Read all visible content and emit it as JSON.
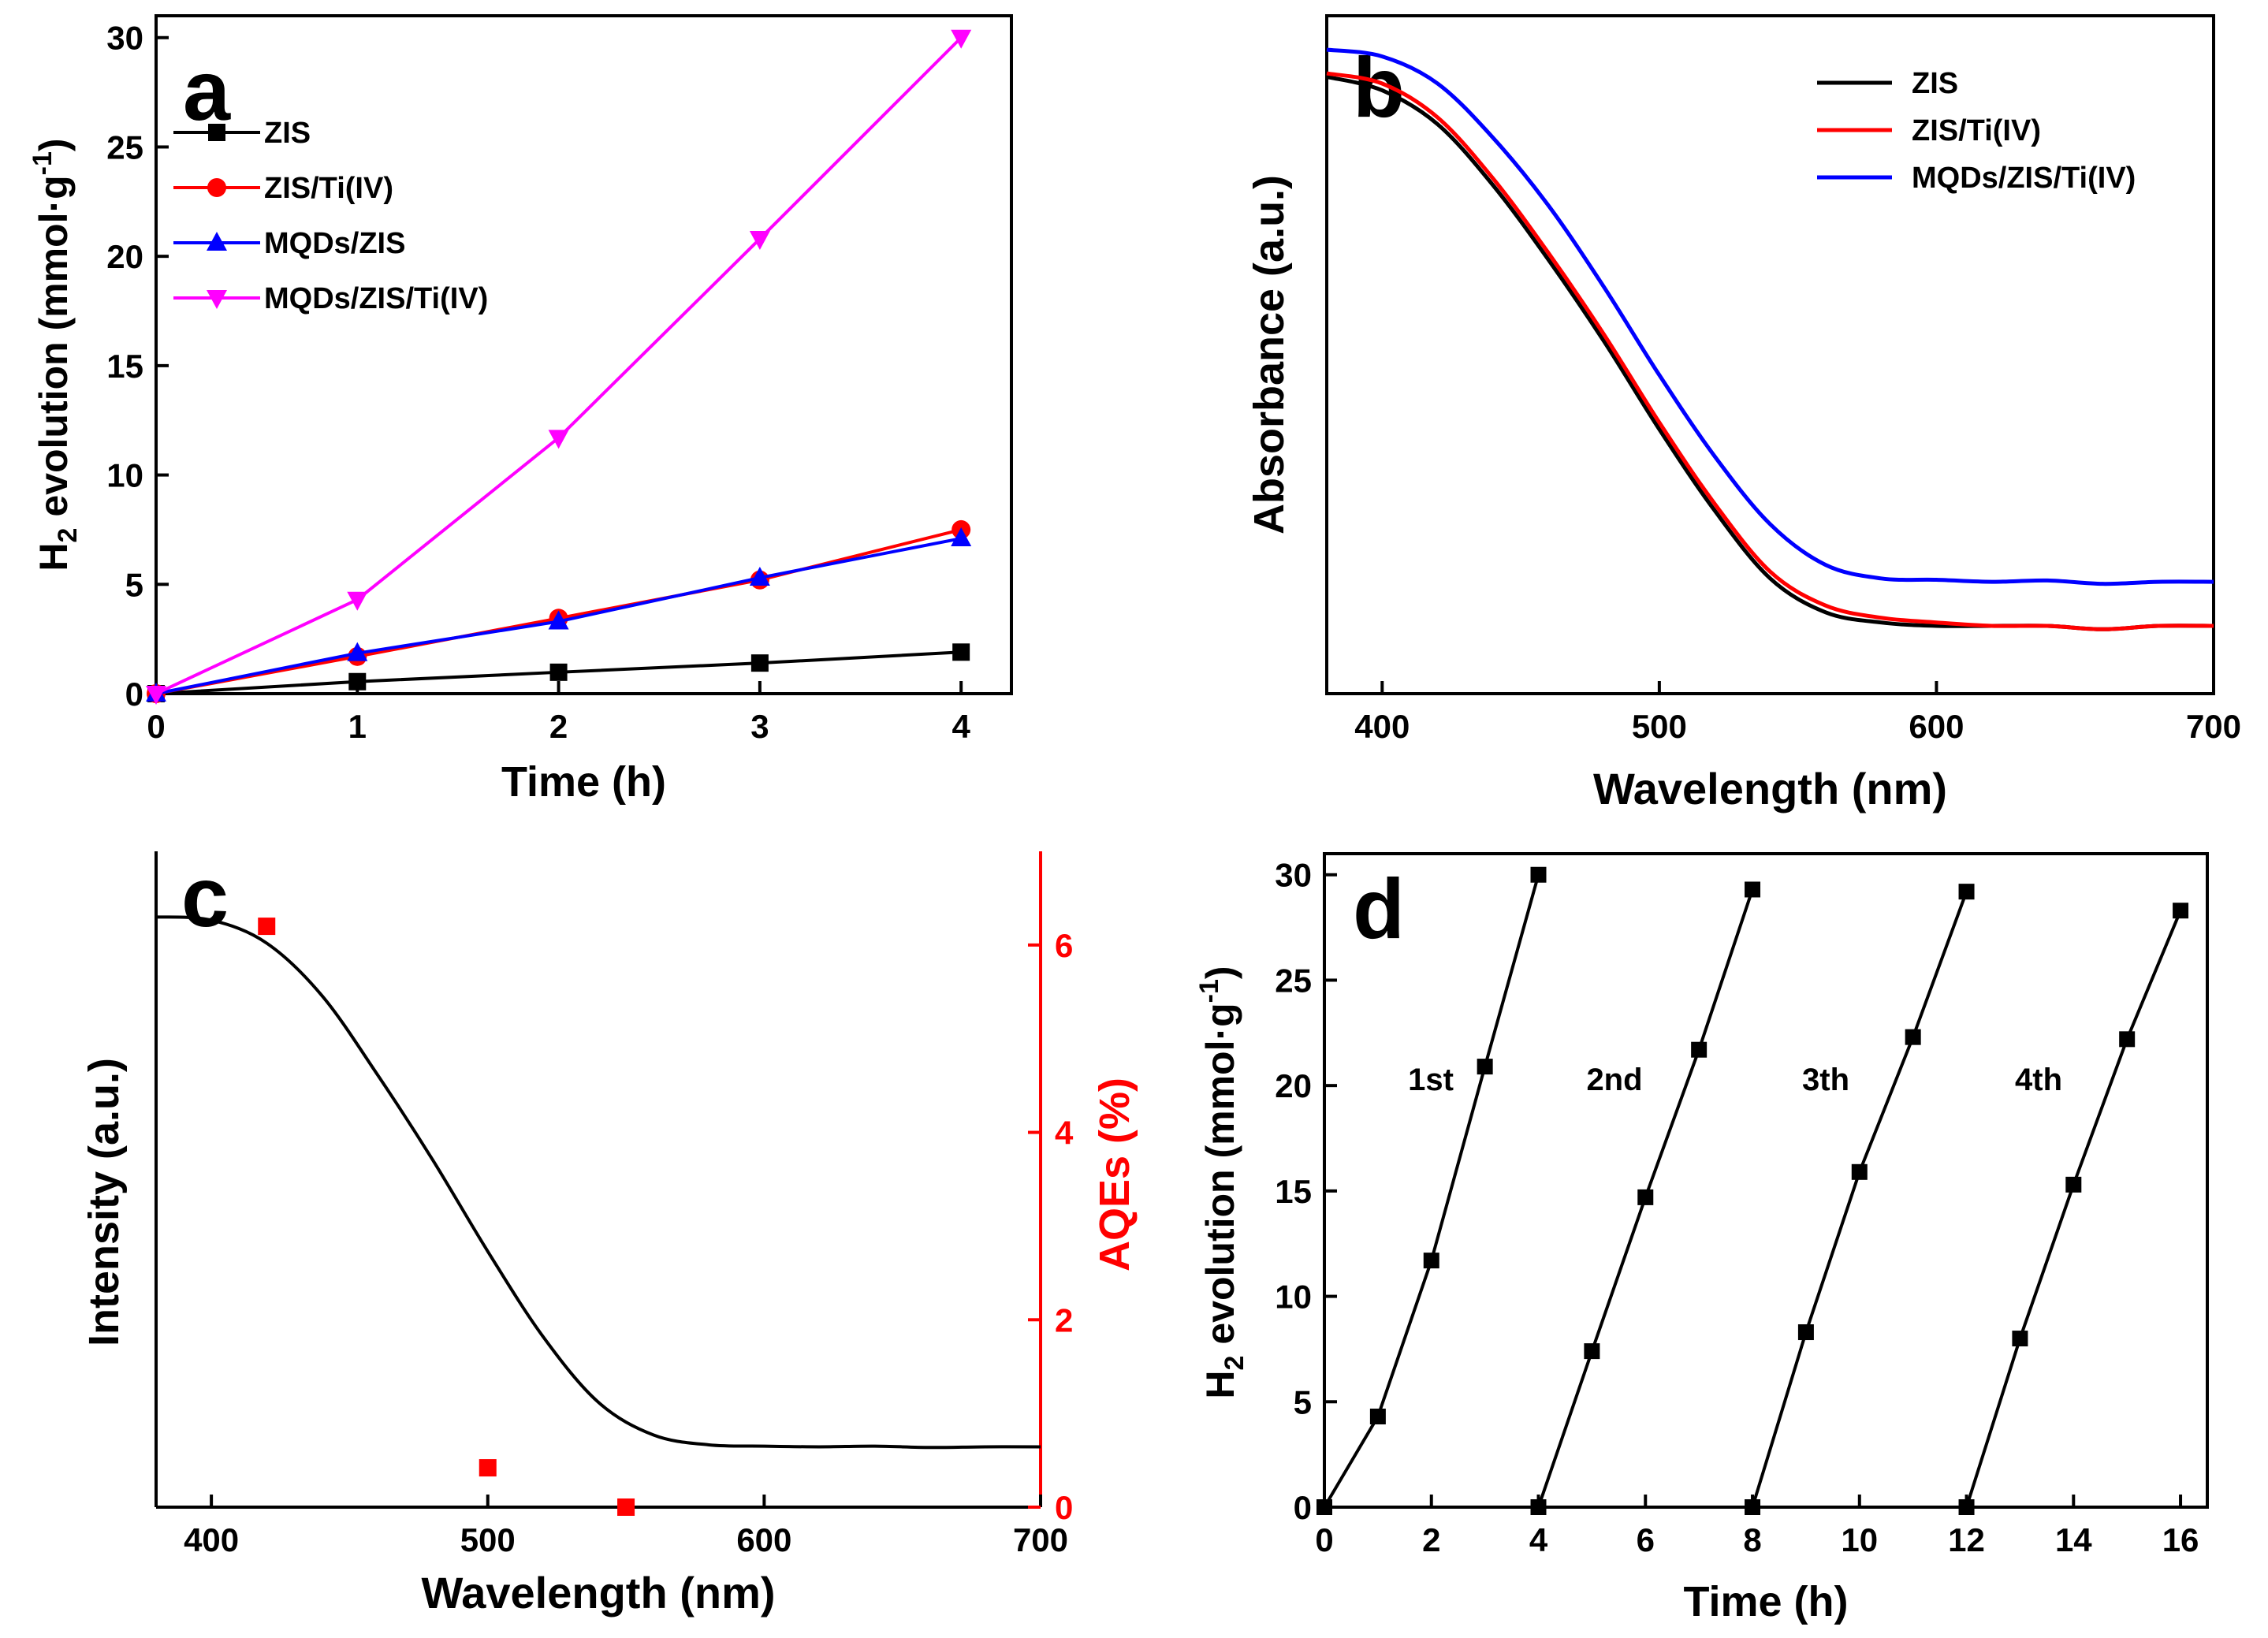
{
  "chart_data": [
    {
      "id": "a",
      "type": "line",
      "panel_label": "a",
      "xlabel": "Time (h)",
      "ylabel": {
        "main": "H",
        "sub": "2",
        "rest": " evolution (mmol·g",
        "sup": "-1",
        "close": ")"
      },
      "xlim": [
        0,
        4.25
      ],
      "ylim": [
        0,
        31
      ],
      "xticks": [
        0,
        1,
        2,
        3,
        4
      ],
      "yticks": [
        0,
        5,
        10,
        15,
        20,
        25,
        30
      ],
      "x": [
        0,
        1,
        2,
        3,
        4
      ],
      "legend_position": "top-left",
      "series": [
        {
          "name": "ZIS",
          "color": "#000000",
          "marker": "square",
          "values": [
            0,
            0.55,
            0.98,
            1.4,
            1.9
          ]
        },
        {
          "name": "ZIS/Ti(IV)",
          "color": "#ff0000",
          "marker": "circle",
          "values": [
            0,
            1.7,
            3.45,
            5.2,
            7.5
          ]
        },
        {
          "name": "MQDs/ZIS",
          "color": "#0000ff",
          "marker": "triangle-up",
          "values": [
            0,
            1.85,
            3.3,
            5.3,
            7.1
          ]
        },
        {
          "name": "MQDs/ZIS/Ti(IV)",
          "color": "#ff00ff",
          "marker": "triangle-down",
          "values": [
            0,
            4.3,
            11.7,
            20.8,
            30.0
          ]
        }
      ]
    },
    {
      "id": "b",
      "type": "line",
      "panel_label": "b",
      "xlabel": "Wavelength (nm)",
      "ylabel": "Absorbance (a.u.)",
      "xlim": [
        380,
        700
      ],
      "ylim": [
        0,
        1
      ],
      "xticks": [
        400,
        500,
        600,
        700
      ],
      "yticks": [],
      "legend_position": "top-right",
      "series": [
        {
          "name": "ZIS",
          "color": "#000000",
          "x": [
            380,
            400,
            420,
            440,
            460,
            480,
            500,
            520,
            540,
            560,
            580,
            600,
            620,
            640,
            660,
            680,
            700
          ],
          "values": [
            0.91,
            0.89,
            0.84,
            0.75,
            0.64,
            0.52,
            0.39,
            0.27,
            0.17,
            0.12,
            0.105,
            0.1,
            0.1,
            0.1,
            0.095,
            0.1,
            0.1
          ]
        },
        {
          "name": "ZIS/Ti(IV)",
          "color": "#ff0000",
          "x": [
            380,
            400,
            420,
            440,
            460,
            480,
            500,
            520,
            540,
            560,
            580,
            600,
            620,
            640,
            660,
            680,
            700
          ],
          "values": [
            0.915,
            0.9,
            0.85,
            0.76,
            0.65,
            0.53,
            0.4,
            0.28,
            0.18,
            0.13,
            0.112,
            0.105,
            0.1,
            0.1,
            0.095,
            0.1,
            0.1
          ]
        },
        {
          "name": "MQDs/ZIS/Ti(IV)",
          "color": "#0000ff",
          "x": [
            380,
            400,
            420,
            440,
            460,
            480,
            500,
            520,
            540,
            560,
            580,
            600,
            620,
            640,
            660,
            680,
            700
          ],
          "values": [
            0.95,
            0.94,
            0.9,
            0.82,
            0.72,
            0.6,
            0.47,
            0.35,
            0.25,
            0.19,
            0.17,
            0.168,
            0.165,
            0.167,
            0.162,
            0.165,
            0.165
          ]
        }
      ]
    },
    {
      "id": "c",
      "type": "line",
      "panel_label": "c",
      "xlabel": "Wavelength (nm)",
      "ylabel": "Intensity (a.u.)",
      "ylabel_right": "AQEs (%)",
      "xlim": [
        380,
        700
      ],
      "ylim": [
        0,
        1
      ],
      "ylim_right": [
        0,
        7
      ],
      "xticks": [
        400,
        500,
        600,
        700
      ],
      "yticks_right": [
        0,
        2,
        4,
        6
      ],
      "series": [
        {
          "name": "Intensity",
          "color": "#000000",
          "x": [
            380,
            400,
            420,
            440,
            460,
            480,
            500,
            520,
            540,
            560,
            580,
            600,
            620,
            640,
            660,
            680,
            700
          ],
          "values": [
            0.9,
            0.895,
            0.86,
            0.78,
            0.66,
            0.53,
            0.39,
            0.26,
            0.16,
            0.11,
            0.095,
            0.093,
            0.092,
            0.093,
            0.091,
            0.092,
            0.092
          ]
        },
        {
          "name": "AQEs",
          "color": "#ff0000",
          "marker": "square",
          "axis": "right",
          "x": [
            420,
            500,
            550
          ],
          "values": [
            6.2,
            0.42,
            0.0
          ]
        }
      ]
    },
    {
      "id": "d",
      "type": "line",
      "panel_label": "d",
      "xlabel": "Time (h)",
      "ylabel": {
        "main": "H",
        "sub": "2",
        "rest": " evolution (mmol·g",
        "sup": "-1",
        "close": ")"
      },
      "xlim": [
        0,
        16.5
      ],
      "ylim": [
        0,
        31
      ],
      "xticks": [
        0,
        2,
        4,
        6,
        8,
        10,
        12,
        14,
        16
      ],
      "yticks": [
        0,
        5,
        10,
        15,
        20,
        25,
        30
      ],
      "cycle_labels": [
        "1st",
        "2nd",
        "3th",
        "4th"
      ],
      "series": [
        {
          "name": "1st",
          "color": "#000000",
          "marker": "square",
          "x": [
            0,
            1,
            2,
            3,
            4
          ],
          "values": [
            0,
            4.3,
            11.7,
            20.9,
            30.0
          ]
        },
        {
          "name": "2nd",
          "color": "#000000",
          "marker": "square",
          "x": [
            4,
            5,
            6,
            7,
            8
          ],
          "values": [
            0,
            7.4,
            14.7,
            21.7,
            29.3
          ]
        },
        {
          "name": "3th",
          "color": "#000000",
          "marker": "square",
          "x": [
            8,
            9,
            10,
            11,
            12
          ],
          "values": [
            0,
            8.3,
            15.9,
            22.3,
            29.2
          ]
        },
        {
          "name": "4th",
          "color": "#000000",
          "marker": "square",
          "x": [
            12,
            13,
            14,
            15,
            16
          ],
          "values": [
            0,
            8.0,
            15.3,
            22.2,
            28.3
          ]
        }
      ]
    }
  ]
}
